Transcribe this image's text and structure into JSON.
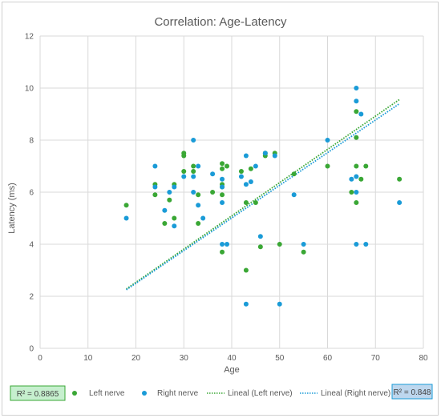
{
  "chart_data": {
    "type": "scatter",
    "title": "Correlation: Age-Latency",
    "xlabel": "Age",
    "ylabel": "Latency (ms)",
    "xlim": [
      0,
      80
    ],
    "ylim": [
      0,
      12
    ],
    "xticks": [
      0,
      10,
      20,
      30,
      40,
      50,
      60,
      70,
      80
    ],
    "yticks": [
      0,
      2,
      4,
      6,
      8,
      10,
      12
    ],
    "grid": "major-both",
    "legend_position": "bottom",
    "series": [
      {
        "name": "Left nerve",
        "color": "#3aa735",
        "points": [
          [
            18,
            5.5
          ],
          [
            24,
            6.3
          ],
          [
            24,
            5.9
          ],
          [
            26,
            4.8
          ],
          [
            27,
            5.7
          ],
          [
            28,
            6.3
          ],
          [
            28,
            5.0
          ],
          [
            30,
            7.5
          ],
          [
            30,
            7.4
          ],
          [
            30,
            6.8
          ],
          [
            32,
            6.8
          ],
          [
            32,
            7.0
          ],
          [
            33,
            4.8
          ],
          [
            33,
            5.9
          ],
          [
            36,
            6.0
          ],
          [
            38,
            7.1
          ],
          [
            38,
            6.9
          ],
          [
            38,
            6.3
          ],
          [
            38,
            6.2
          ],
          [
            38,
            5.9
          ],
          [
            38,
            3.7
          ],
          [
            39,
            7.0
          ],
          [
            42,
            6.8
          ],
          [
            43,
            5.6
          ],
          [
            43,
            3.0
          ],
          [
            44,
            6.9
          ],
          [
            45,
            5.6
          ],
          [
            46,
            3.9
          ],
          [
            47,
            7.5
          ],
          [
            47,
            7.4
          ],
          [
            49,
            7.5
          ],
          [
            50,
            4.0
          ],
          [
            53,
            6.7
          ],
          [
            55,
            3.7
          ],
          [
            60,
            7.0
          ],
          [
            65,
            6.0
          ],
          [
            66,
            9.1
          ],
          [
            66,
            8.1
          ],
          [
            66,
            7.0
          ],
          [
            66,
            5.6
          ],
          [
            67,
            6.5
          ],
          [
            68,
            7.0
          ],
          [
            75,
            6.5
          ]
        ]
      },
      {
        "name": "Right nerve",
        "color": "#1a9bd7",
        "points": [
          [
            18,
            5.0
          ],
          [
            24,
            7.0
          ],
          [
            24,
            6.2
          ],
          [
            26,
            5.3
          ],
          [
            27,
            6.0
          ],
          [
            28,
            6.2
          ],
          [
            28,
            4.7
          ],
          [
            30,
            6.6
          ],
          [
            32,
            8.0
          ],
          [
            32,
            6.6
          ],
          [
            32,
            6.0
          ],
          [
            33,
            7.0
          ],
          [
            33,
            5.5
          ],
          [
            34,
            5.0
          ],
          [
            36,
            6.7
          ],
          [
            38,
            6.5
          ],
          [
            38,
            6.2
          ],
          [
            38,
            5.6
          ],
          [
            38,
            4.0
          ],
          [
            39,
            4.0
          ],
          [
            42,
            6.6
          ],
          [
            43,
            7.4
          ],
          [
            43,
            6.3
          ],
          [
            43,
            1.7
          ],
          [
            44,
            6.4
          ],
          [
            45,
            7.0
          ],
          [
            46,
            4.3
          ],
          [
            47,
            7.5
          ],
          [
            49,
            7.4
          ],
          [
            50,
            1.7
          ],
          [
            53,
            5.9
          ],
          [
            55,
            4.0
          ],
          [
            60,
            8.0
          ],
          [
            65,
            6.5
          ],
          [
            66,
            10.0
          ],
          [
            66,
            9.5
          ],
          [
            66,
            6.6
          ],
          [
            66,
            6.0
          ],
          [
            66,
            4.0
          ],
          [
            67,
            9.0
          ],
          [
            68,
            4.0
          ],
          [
            75,
            5.6
          ]
        ]
      }
    ],
    "trendlines": [
      {
        "name": "Lineal (Left nerve)",
        "color": "#3aa735",
        "x": [
          18,
          75
        ],
        "y": [
          2.28,
          9.56
        ]
      },
      {
        "name": "Lineal (Right nerve)",
        "color": "#1a9bd7",
        "x": [
          18,
          75
        ],
        "y": [
          2.25,
          9.4
        ]
      }
    ],
    "r2_labels": {
      "left": "R² = 0.8865",
      "right": "R² = 0.848",
      "left_fill": "#c6efce",
      "left_stroke": "#3aa735",
      "right_fill": "#bdd7ee",
      "right_stroke": "#1a9bd7"
    }
  }
}
